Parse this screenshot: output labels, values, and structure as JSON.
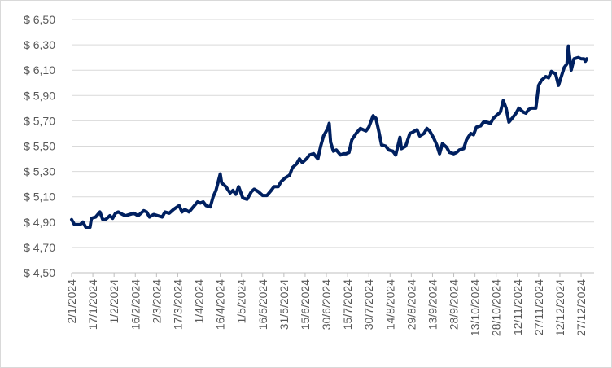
{
  "chart_data": {
    "type": "line",
    "x": [
      "2/1/2024",
      "4/1/2024",
      "8/1/2024",
      "10/1/2024",
      "12/1/2024",
      "15/1/2024",
      "16/1/2024",
      "19/1/2024",
      "22/1/2024",
      "24/1/2024",
      "26/1/2024",
      "29/1/2024",
      "31/1/2024",
      "2/2/2024",
      "4/2/2024",
      "7/2/2024",
      "9/2/2024",
      "12/2/2024",
      "15/2/2024",
      "18/2/2024",
      "22/2/2024",
      "24/2/2024",
      "26/2/2024",
      "29/2/2024",
      "3/3/2024",
      "6/3/2024",
      "8/3/2024",
      "11/3/2024",
      "14/3/2024",
      "18/3/2024",
      "20/3/2024",
      "22/3/2024",
      "25/3/2024",
      "28/3/2024",
      "31/3/2024",
      "2/4/2024",
      "4/4/2024",
      "6/4/2024",
      "9/4/2024",
      "11/4/2024",
      "13/4/2024",
      "16/4/2024",
      "17/4/2024",
      "20/4/2024",
      "23/4/2024",
      "25/4/2024",
      "27/4/2024",
      "29/4/2024",
      "2/5/2024",
      "5/5/2024",
      "8/5/2024",
      "10/5/2024",
      "13/5/2024",
      "16/5/2024",
      "19/5/2024",
      "22/5/2024",
      "24/5/2024",
      "27/5/2024",
      "29/5/2024",
      "1/6/2024",
      "4/6/2024",
      "6/6/2024",
      "9/6/2024",
      "11/6/2024",
      "13/6/2024",
      "16/6/2024",
      "18/6/2024",
      "21/6/2024",
      "24/6/2024",
      "26/6/2024",
      "28/6/2024",
      "1/7/2024",
      "2/7/2024",
      "3/7/2024",
      "5/7/2024",
      "7/7/2024",
      "10/7/2024",
      "12/7/2024",
      "14/7/2024",
      "16/7/2024",
      "18/7/2024",
      "21/7/2024",
      "24/7/2024",
      "26/7/2024",
      "28/7/2024",
      "30/7/2024",
      "2/8/2024",
      "4/8/2024",
      "6/8/2024",
      "8/8/2024",
      "11/8/2024",
      "13/8/2024",
      "16/8/2024",
      "18/8/2024",
      "21/8/2024",
      "22/8/2024",
      "25/8/2024",
      "28/8/2024",
      "30/8/2024",
      "2/9/2024",
      "4/9/2024",
      "7/9/2024",
      "9/9/2024",
      "11/9/2024",
      "14/9/2024",
      "16/9/2024",
      "18/9/2024",
      "20/9/2024",
      "23/9/2024",
      "25/9/2024",
      "28/9/2024",
      "30/9/2024",
      "2/10/2024",
      "5/10/2024",
      "7/10/2024",
      "10/10/2024",
      "12/10/2024",
      "14/10/2024",
      "17/10/2024",
      "19/10/2024",
      "21/10/2024",
      "24/10/2024",
      "26/10/2024",
      "29/10/2024",
      "31/10/2024",
      "2/11/2024",
      "4/11/2024",
      "6/11/2024",
      "9/11/2024",
      "11/11/2024",
      "13/11/2024",
      "16/11/2024",
      "18/11/2024",
      "20/11/2024",
      "22/11/2024",
      "25/11/2024",
      "27/11/2024",
      "29/11/2024",
      "2/12/2024",
      "4/12/2024",
      "6/12/2024",
      "9/12/2024",
      "11/12/2024",
      "13/12/2024",
      "15/12/2024",
      "17/12/2024",
      "18/12/2024",
      "20/12/2024",
      "22/12/2024",
      "25/12/2024",
      "27/12/2024",
      "29/12/2024",
      "30/12/2024",
      "31/12/2024"
    ],
    "series": [
      {
        "color": "#002060",
        "values": [
          4.92,
          4.88,
          4.88,
          4.9,
          4.86,
          4.86,
          4.93,
          4.94,
          4.98,
          4.92,
          4.92,
          4.95,
          4.93,
          4.97,
          4.98,
          4.96,
          4.95,
          4.96,
          4.97,
          4.95,
          4.99,
          4.98,
          4.94,
          4.96,
          4.95,
          4.94,
          4.98,
          4.97,
          5.0,
          5.03,
          4.98,
          5.0,
          4.98,
          5.02,
          5.06,
          5.05,
          5.06,
          5.03,
          5.02,
          5.1,
          5.15,
          5.28,
          5.21,
          5.18,
          5.13,
          5.15,
          5.12,
          5.18,
          5.09,
          5.08,
          5.14,
          5.16,
          5.14,
          5.11,
          5.11,
          5.15,
          5.18,
          5.18,
          5.22,
          5.25,
          5.27,
          5.33,
          5.36,
          5.4,
          5.37,
          5.4,
          5.43,
          5.44,
          5.4,
          5.5,
          5.58,
          5.64,
          5.68,
          5.53,
          5.46,
          5.47,
          5.43,
          5.44,
          5.44,
          5.45,
          5.55,
          5.6,
          5.64,
          5.63,
          5.62,
          5.65,
          5.74,
          5.72,
          5.62,
          5.51,
          5.5,
          5.47,
          5.46,
          5.43,
          5.57,
          5.48,
          5.5,
          5.6,
          5.61,
          5.63,
          5.58,
          5.6,
          5.64,
          5.62,
          5.56,
          5.51,
          5.44,
          5.52,
          5.49,
          5.45,
          5.44,
          5.45,
          5.47,
          5.48,
          5.55,
          5.6,
          5.59,
          5.65,
          5.66,
          5.69,
          5.69,
          5.68,
          5.72,
          5.75,
          5.77,
          5.86,
          5.8,
          5.69,
          5.73,
          5.76,
          5.8,
          5.77,
          5.76,
          5.79,
          5.8,
          5.8,
          5.98,
          6.02,
          6.05,
          6.04,
          6.09,
          6.07,
          5.98,
          6.05,
          6.12,
          6.15,
          6.29,
          6.1,
          6.19,
          6.2,
          6.19,
          6.19,
          6.17,
          6.19
        ]
      }
    ],
    "xlim": [
      "2/1/2024",
      "31/12/2024"
    ],
    "xticks": [
      "2/1/2024",
      "17/1/2024",
      "1/2/2024",
      "16/2/2024",
      "2/3/2024",
      "17/3/2024",
      "1/4/2024",
      "16/4/2024",
      "1/5/2024",
      "16/5/2024",
      "31/5/2024",
      "15/6/2024",
      "30/6/2024",
      "15/7/2024",
      "30/7/2024",
      "14/8/2024",
      "29/8/2024",
      "13/9/2024",
      "28/9/2024",
      "13/10/2024",
      "28/10/2024",
      "12/11/2024",
      "27/11/2024",
      "12/12/2024",
      "27/12/2024"
    ],
    "ylim": [
      4.5,
      6.5
    ],
    "yticks": [
      {
        "value": 4.5,
        "label": "$ 4,50"
      },
      {
        "value": 4.7,
        "label": "$ 4,70"
      },
      {
        "value": 4.9,
        "label": "$ 4,90"
      },
      {
        "value": 5.1,
        "label": "$ 5,10"
      },
      {
        "value": 5.3,
        "label": "$ 5,30"
      },
      {
        "value": 5.5,
        "label": "$ 5,50"
      },
      {
        "value": 5.7,
        "label": "$ 5,70"
      },
      {
        "value": 5.9,
        "label": "$ 5,90"
      },
      {
        "value": 6.1,
        "label": "$ 6,10"
      },
      {
        "value": 6.3,
        "label": "$ 6,30"
      },
      {
        "value": 6.5,
        "label": "$ 6,50"
      }
    ],
    "grid": true
  }
}
